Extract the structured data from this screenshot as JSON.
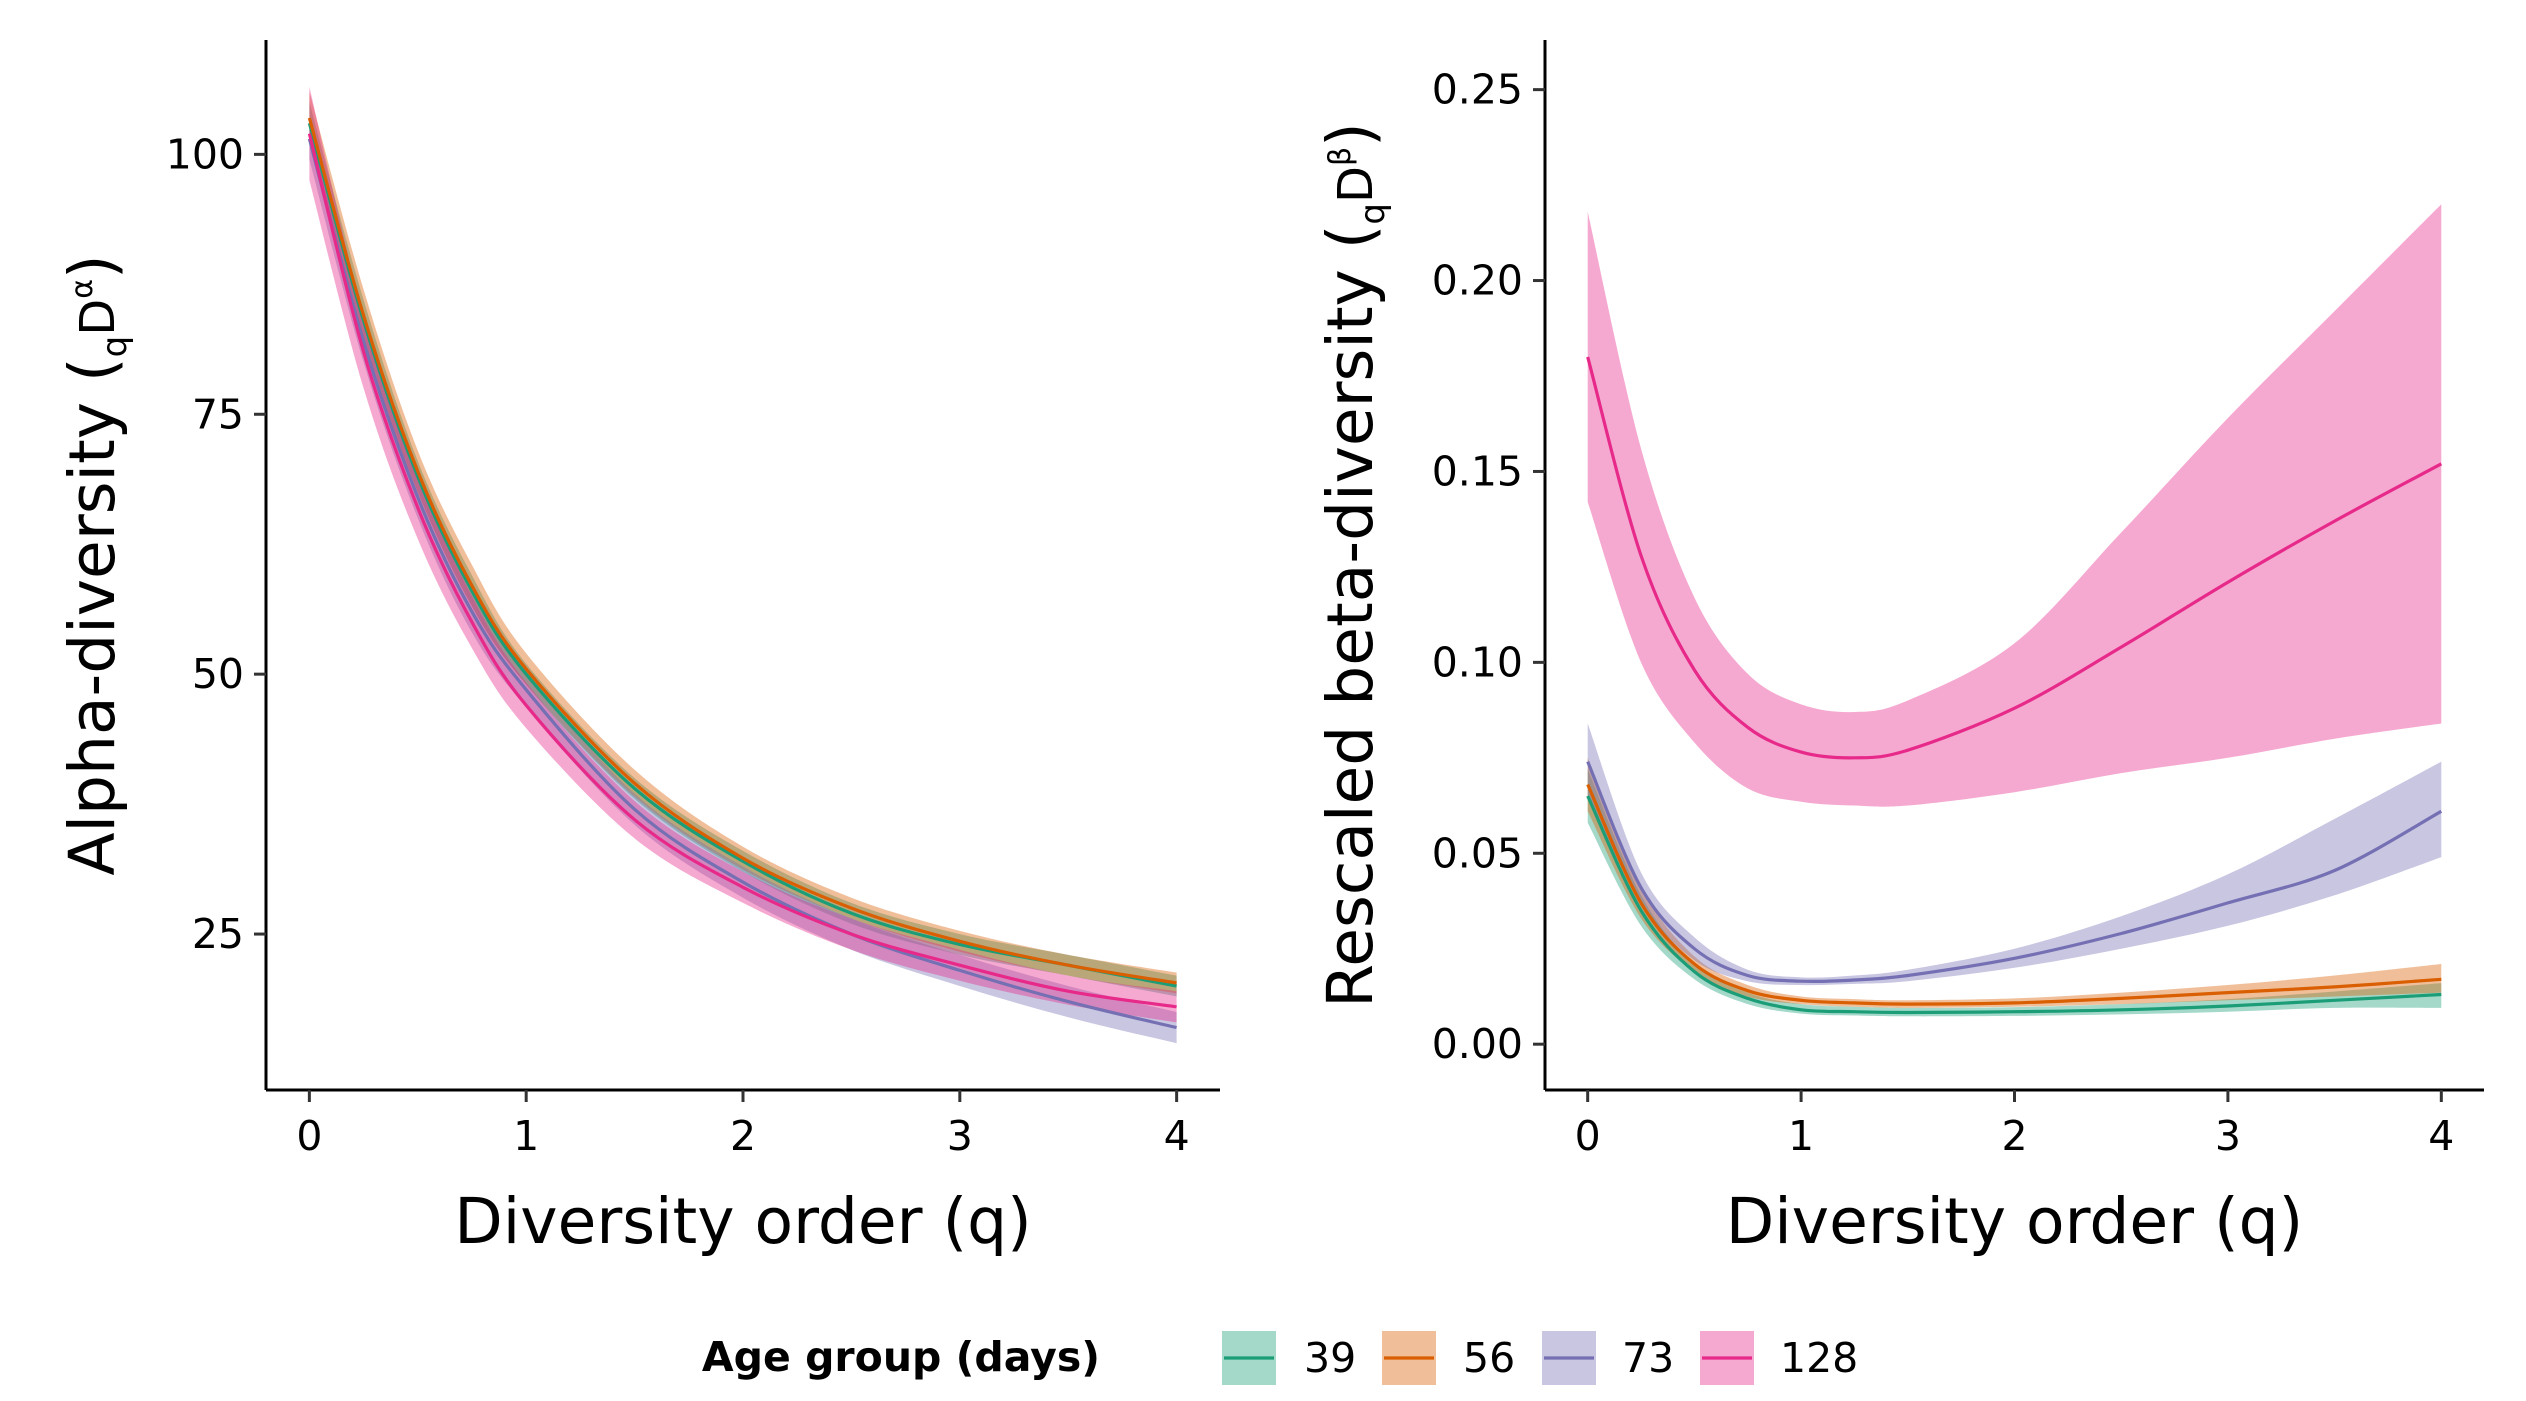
{
  "chart_data": [
    {
      "type": "line",
      "panel": "left",
      "xlabel": "Diversity order (q)",
      "ylabel": "Alpha-diversity",
      "ylabel_symbol": {
        "base": "D",
        "sub": "q",
        "sup": "α"
      },
      "xlim": [
        -0.2,
        4.2
      ],
      "ylim": [
        10,
        111
      ],
      "xticks": [
        0,
        1,
        2,
        3,
        4
      ],
      "yticks": [
        25,
        50,
        75,
        100
      ],
      "grid": false,
      "x": [
        0,
        0.25,
        0.5,
        0.75,
        1,
        1.5,
        2,
        2.5,
        3,
        3.5,
        4
      ],
      "series": [
        {
          "name": "39",
          "values": [
            103,
            84,
            69,
            58,
            50,
            39,
            32,
            27,
            24,
            22,
            20
          ],
          "lower": [
            101,
            82,
            67.5,
            56.5,
            49,
            38,
            31,
            26,
            23,
            21,
            19
          ],
          "upper": [
            105,
            86,
            70.5,
            59.5,
            51,
            40,
            33,
            28,
            25,
            23,
            21
          ]
        },
        {
          "name": "56",
          "values": [
            103.5,
            84.5,
            69.5,
            58.5,
            50.5,
            39.5,
            32.3,
            27.5,
            24.3,
            22,
            20.3
          ],
          "lower": [
            101,
            82,
            67.5,
            56.5,
            49,
            38.2,
            31.2,
            26.5,
            23.3,
            21,
            19.3
          ],
          "upper": [
            106,
            87,
            71.5,
            60.5,
            52,
            40.8,
            33.4,
            28.5,
            25.3,
            23,
            21.3
          ]
        },
        {
          "name": "73",
          "values": [
            101.5,
            82,
            67,
            56,
            48.5,
            37,
            30,
            25,
            21.5,
            18.5,
            16
          ],
          "lower": [
            99.5,
            80,
            65,
            54,
            46.8,
            35.5,
            28.5,
            23.5,
            20,
            17,
            14.5
          ],
          "upper": [
            103.5,
            84,
            69,
            58,
            50.2,
            38.5,
            31.5,
            26.5,
            23,
            20,
            17.5
          ]
        },
        {
          "name": "128",
          "values": [
            102,
            81,
            66,
            55,
            47,
            36,
            29.5,
            25,
            22,
            19.5,
            18
          ],
          "lower": [
            97.5,
            77.5,
            63,
            52.5,
            44.8,
            34.2,
            28,
            23.5,
            20.5,
            18.2,
            16.5
          ],
          "upper": [
            106.5,
            84.5,
            69,
            57.5,
            49.2,
            37.8,
            31,
            26.5,
            23.5,
            21,
            19.5
          ]
        }
      ]
    },
    {
      "type": "line",
      "panel": "right",
      "xlabel": "Diversity order (q)",
      "ylabel": "Rescaled beta-diversity",
      "ylabel_symbol": {
        "base": "D",
        "sub": "q",
        "sup": "β"
      },
      "xlim": [
        -0.2,
        4.2
      ],
      "ylim": [
        -0.012,
        0.263
      ],
      "xticks": [
        0,
        1,
        2,
        3,
        4
      ],
      "yticks": [
        0.0,
        0.05,
        0.1,
        0.15,
        0.2,
        0.25
      ],
      "ytick_labels": [
        "0.00",
        "0.05",
        "0.10",
        "0.15",
        "0.20",
        "0.25"
      ],
      "grid": false,
      "x": [
        0,
        0.25,
        0.5,
        0.75,
        1,
        1.25,
        1.5,
        2,
        2.5,
        3,
        3.5,
        4
      ],
      "series": [
        {
          "name": "39",
          "values": [
            0.065,
            0.035,
            0.019,
            0.012,
            0.009,
            0.0085,
            0.0083,
            0.0085,
            0.009,
            0.01,
            0.0115,
            0.013
          ],
          "lower": [
            0.058,
            0.031,
            0.017,
            0.0105,
            0.008,
            0.0075,
            0.0073,
            0.0074,
            0.0078,
            0.0085,
            0.0095,
            0.0095
          ],
          "upper": [
            0.072,
            0.039,
            0.021,
            0.0135,
            0.0105,
            0.0098,
            0.0095,
            0.0097,
            0.0105,
            0.0118,
            0.0138,
            0.016
          ]
        },
        {
          "name": "56",
          "values": [
            0.068,
            0.037,
            0.021,
            0.014,
            0.0115,
            0.0108,
            0.0105,
            0.0108,
            0.012,
            0.0135,
            0.015,
            0.017
          ],
          "lower": [
            0.061,
            0.033,
            0.019,
            0.0125,
            0.0105,
            0.0098,
            0.0095,
            0.0098,
            0.0105,
            0.0115,
            0.0125,
            0.0135
          ],
          "upper": [
            0.075,
            0.041,
            0.023,
            0.0155,
            0.0125,
            0.0118,
            0.0115,
            0.012,
            0.0135,
            0.0155,
            0.018,
            0.021
          ]
        },
        {
          "name": "73",
          "values": [
            0.074,
            0.041,
            0.025,
            0.018,
            0.0165,
            0.0168,
            0.018,
            0.0225,
            0.029,
            0.037,
            0.0455,
            0.061
          ],
          "lower": [
            0.065,
            0.037,
            0.022,
            0.0165,
            0.0155,
            0.0158,
            0.0165,
            0.02,
            0.025,
            0.031,
            0.039,
            0.049
          ],
          "upper": [
            0.084,
            0.045,
            0.028,
            0.0195,
            0.0175,
            0.018,
            0.0195,
            0.025,
            0.0335,
            0.0445,
            0.059,
            0.074
          ]
        },
        {
          "name": "128",
          "values": [
            0.18,
            0.128,
            0.098,
            0.083,
            0.0765,
            0.075,
            0.077,
            0.088,
            0.104,
            0.121,
            0.137,
            0.152
          ],
          "lower": [
            0.142,
            0.1,
            0.079,
            0.067,
            0.0635,
            0.0625,
            0.0625,
            0.066,
            0.071,
            0.075,
            0.08,
            0.084
          ],
          "upper": [
            0.218,
            0.156,
            0.117,
            0.097,
            0.089,
            0.087,
            0.09,
            0.105,
            0.134,
            0.164,
            0.192,
            0.22
          ]
        }
      ]
    }
  ],
  "legend": {
    "title": "Age group (days)",
    "placement": "bottom",
    "items": [
      {
        "label": "39",
        "color": "#1B9E77"
      },
      {
        "label": "56",
        "color": "#D95F02"
      },
      {
        "label": "73",
        "color": "#7570B3"
      },
      {
        "label": "128",
        "color": "#E7298A"
      }
    ]
  }
}
